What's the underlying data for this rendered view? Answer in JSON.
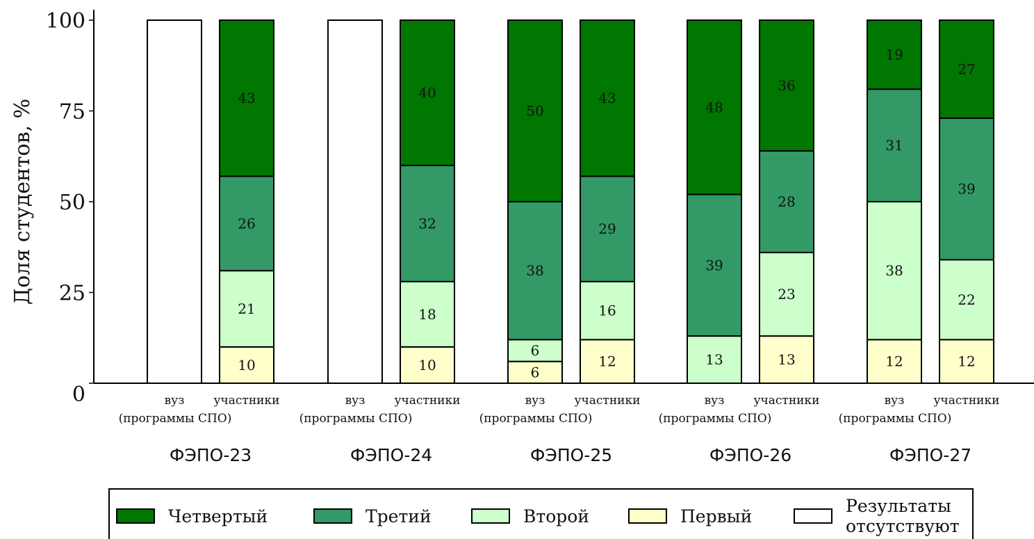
{
  "chart_data": {
    "type": "bar",
    "stacked": true,
    "ylabel": "Доля студентов, %",
    "ylim": [
      0,
      100
    ],
    "yticks": [
      0,
      25,
      50,
      75,
      100
    ],
    "groups": [
      {
        "name": "ФЭПО-23",
        "bars": [
          {
            "label": "вуз (программы СПО)",
            "label_line1": "вуз",
            "missing": true,
            "values": {
              "Первый": null,
              "Второй": null,
              "Третий": null,
              "Четвертый": null
            }
          },
          {
            "label": "участники",
            "label_line1": "участники",
            "missing": false,
            "values": {
              "Первый": 10,
              "Второй": 21,
              "Третий": 26,
              "Четвертый": 43
            }
          }
        ]
      },
      {
        "name": "ФЭПО-24",
        "bars": [
          {
            "label": "вуз (программы СПО)",
            "label_line1": "вуз",
            "missing": true,
            "values": {
              "Первый": null,
              "Второй": null,
              "Третий": null,
              "Четвертый": null
            }
          },
          {
            "label": "участники",
            "label_line1": "участники",
            "missing": false,
            "values": {
              "Первый": 10,
              "Второй": 18,
              "Третий": 32,
              "Четвертый": 40
            }
          }
        ]
      },
      {
        "name": "ФЭПО-25",
        "bars": [
          {
            "label": "вуз (программы СПО)",
            "label_line1": "вуз",
            "missing": false,
            "values": {
              "Первый": 6,
              "Второй": 6,
              "Третий": 38,
              "Четвертый": 50
            }
          },
          {
            "label": "участники",
            "label_line1": "участники",
            "missing": false,
            "values": {
              "Первый": 12,
              "Второй": 16,
              "Третий": 29,
              "Четвертый": 43
            }
          }
        ]
      },
      {
        "name": "ФЭПО-26",
        "bars": [
          {
            "label": "вуз (программы СПО)",
            "label_line1": "вуз",
            "missing": false,
            "values": {
              "Первый": 0,
              "Второй": 13,
              "Третий": 39,
              "Четвертый": 48
            }
          },
          {
            "label": "участники",
            "label_line1": "участники",
            "missing": false,
            "values": {
              "Первый": 13,
              "Второй": 23,
              "Третий": 28,
              "Четвертый": 36
            }
          }
        ]
      },
      {
        "name": "ФЭПО-27",
        "bars": [
          {
            "label": "вуз (программы СПО)",
            "label_line1": "вуз",
            "missing": false,
            "values": {
              "Первый": 12,
              "Второй": 38,
              "Третий": 31,
              "Четвертый": 19
            }
          },
          {
            "label": "участники",
            "label_line1": "участники",
            "missing": false,
            "values": {
              "Первый": 12,
              "Второй": 22,
              "Третий": 39,
              "Четвертый": 27
            }
          }
        ]
      }
    ],
    "subline": "(программы СПО)",
    "series": [
      {
        "name": "Первый",
        "color": "#ffffcc"
      },
      {
        "name": "Второй",
        "color": "#ccffcc"
      },
      {
        "name": "Третий",
        "color": "#339966"
      },
      {
        "name": "Четвертый",
        "color": "#007700"
      }
    ],
    "legend": {
      "placement": "bottom",
      "items": [
        {
          "name": "Четвертый",
          "color": "#007700"
        },
        {
          "name": "Третий",
          "color": "#339966"
        },
        {
          "name": "Второй",
          "color": "#ccffcc"
        },
        {
          "name": "Первый",
          "color": "#ffffcc"
        },
        {
          "name": "Результаты отсутствуют",
          "line1": "Результаты",
          "line2": "отсутствуют",
          "color": "#ffffff"
        }
      ]
    },
    "grid": false
  }
}
